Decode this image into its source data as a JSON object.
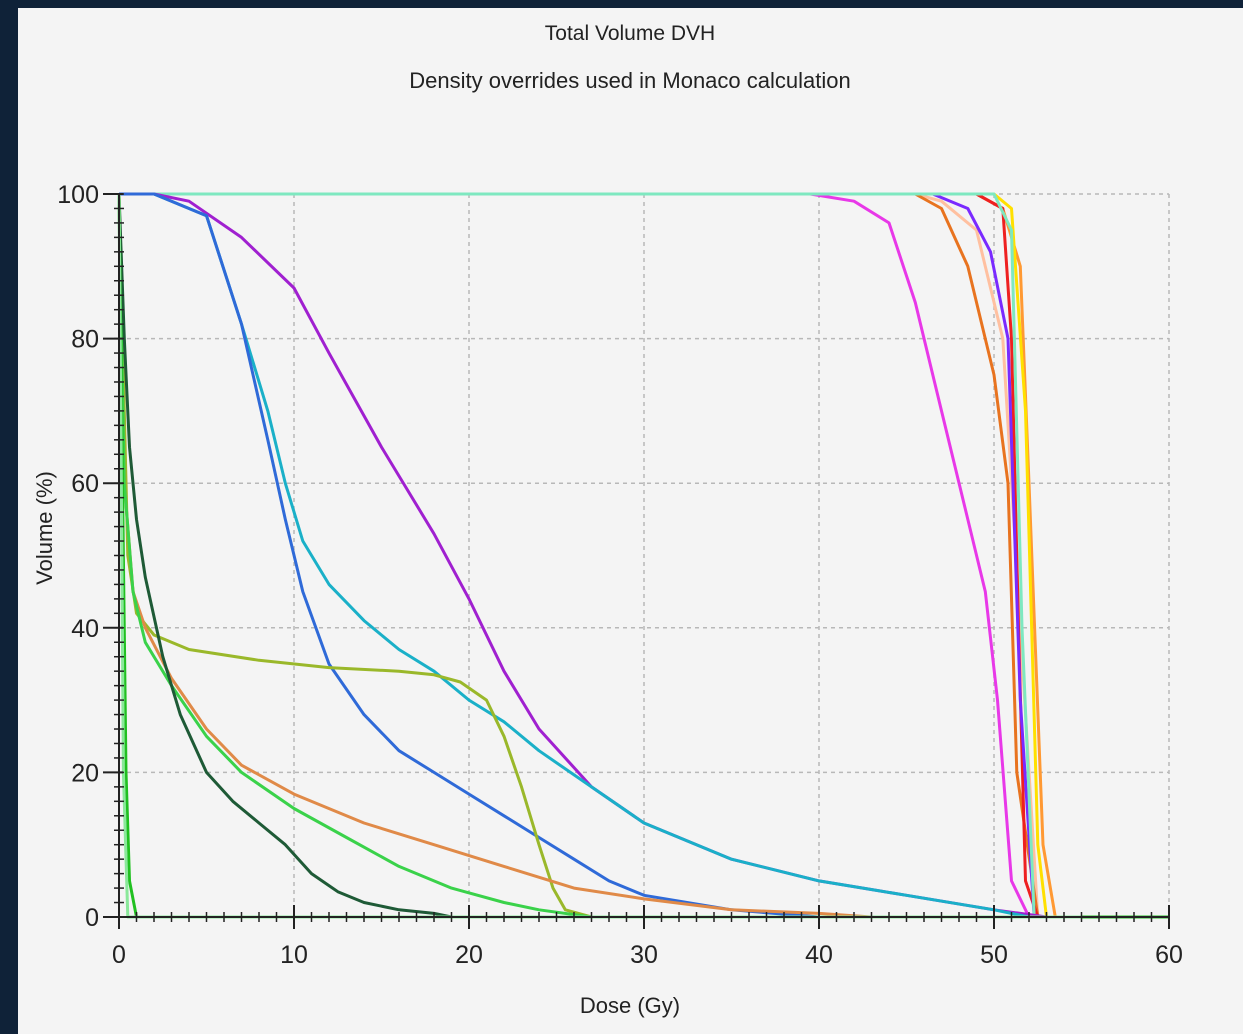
{
  "chart_data": {
    "type": "line",
    "title": "Total Volume DVH",
    "subtitle": "Density overrides used in Monaco calculation",
    "xlabel": "Dose (Gy)",
    "ylabel": "Volume (%)",
    "xlim": [
      0,
      60
    ],
    "ylim": [
      0,
      100
    ],
    "xticks": [
      "0",
      "10",
      "20",
      "30",
      "40",
      "50",
      "60"
    ],
    "yticks": [
      "0",
      "20",
      "40",
      "60",
      "80",
      "100"
    ],
    "grid": true,
    "legend": "none",
    "series": [
      {
        "color": "#ffc0a0",
        "x": [
          0,
          45.5,
          47,
          49,
          50.5,
          51.5,
          52.5
        ],
        "y": [
          100,
          100,
          99,
          95,
          80,
          40,
          0
        ]
      },
      {
        "color": "#ff9933",
        "x": [
          0,
          49,
          50.5,
          51.5,
          52,
          52.8,
          53.5
        ],
        "y": [
          100,
          100,
          98,
          90,
          60,
          10,
          0
        ]
      },
      {
        "color": "#e8731f",
        "x": [
          0,
          45.5,
          47,
          48.5,
          50,
          50.8,
          51.3,
          52.5
        ],
        "y": [
          100,
          100,
          98,
          90,
          75,
          60,
          20,
          0
        ]
      },
      {
        "color": "#ee2020",
        "x": [
          0,
          49,
          50.5,
          51,
          51.4,
          51.8,
          52.5
        ],
        "y": [
          100,
          100,
          98,
          80,
          40,
          5,
          0
        ]
      },
      {
        "color": "#7a2aff",
        "x": [
          0,
          46.5,
          48.5,
          49.8,
          50.8,
          51.5,
          52.3
        ],
        "y": [
          100,
          100,
          98,
          92,
          80,
          30,
          0
        ]
      },
      {
        "color": "#e838e8",
        "x": [
          0,
          39.5,
          42,
          44,
          45.5,
          47,
          48.5,
          49.5,
          50.2,
          51,
          52
        ],
        "y": [
          100,
          100,
          99,
          96,
          85,
          70,
          55,
          45,
          30,
          5,
          0
        ]
      },
      {
        "color": "#ffe000",
        "x": [
          0,
          50,
          51,
          51.8,
          52.5,
          53
        ],
        "y": [
          100,
          100,
          98,
          70,
          10,
          0
        ]
      },
      {
        "color": "#7ee8c0",
        "x": [
          0,
          50,
          51,
          51.6,
          52.3
        ],
        "y": [
          100,
          100,
          95,
          40,
          0
        ]
      },
      {
        "color": "#a020d0",
        "x": [
          0,
          2,
          4,
          7,
          10,
          12,
          15,
          18,
          20,
          22,
          24,
          27,
          30,
          35,
          40,
          45,
          50,
          53
        ],
        "y": [
          100,
          100,
          99,
          94,
          87,
          78,
          65,
          53,
          44,
          34,
          26,
          18,
          13,
          8,
          5,
          3,
          1,
          0
        ]
      },
      {
        "color": "#1ab0c8",
        "x": [
          0,
          2,
          5,
          7,
          8.5,
          9.5,
          10.5,
          12,
          14,
          16,
          18,
          20,
          22,
          24,
          27,
          30,
          35,
          40,
          45,
          50,
          52
        ],
        "y": [
          100,
          100,
          97,
          82,
          70,
          60,
          52,
          46,
          41,
          37,
          34,
          30,
          27,
          23,
          18,
          13,
          8,
          5,
          3,
          1,
          0
        ]
      },
      {
        "color": "#2f6ad8",
        "x": [
          0,
          2,
          5,
          7,
          8.5,
          9.5,
          10.5,
          12,
          14,
          16,
          18,
          20,
          22,
          24,
          26,
          28,
          30,
          35,
          40
        ],
        "y": [
          100,
          100,
          97,
          82,
          66,
          55,
          45,
          35,
          28,
          23,
          20,
          17,
          14,
          11,
          8,
          5,
          3,
          1,
          0
        ]
      },
      {
        "color": "#9ab82a",
        "x": [
          0,
          0.2,
          0.5,
          1,
          2,
          4,
          8,
          12,
          16,
          18,
          19.5,
          21,
          22,
          23,
          24,
          24.8,
          25.5,
          27
        ],
        "y": [
          100,
          80,
          50,
          42,
          39,
          37,
          35.5,
          34.5,
          34,
          33.5,
          32.5,
          30,
          25,
          18,
          10,
          4,
          1,
          0
        ]
      },
      {
        "color": "#e08a48",
        "x": [
          0,
          0.3,
          0.8,
          1.5,
          3,
          5,
          7,
          10,
          14,
          18,
          22,
          26,
          30,
          35,
          40,
          43
        ],
        "y": [
          100,
          60,
          45,
          40,
          33,
          26,
          21,
          17,
          13,
          10,
          7,
          4,
          2.5,
          1,
          0.5,
          0
        ]
      },
      {
        "color": "#3ad24a",
        "x": [
          0,
          0.3,
          0.8,
          1.5,
          3,
          5,
          7,
          10,
          13,
          16,
          19,
          22,
          24,
          27
        ],
        "y": [
          100,
          60,
          45,
          38,
          32,
          25,
          20,
          15,
          11,
          7,
          4,
          2,
          1,
          0
        ]
      },
      {
        "color": "#1e5a36",
        "x": [
          0,
          0.3,
          0.6,
          1,
          1.5,
          2.5,
          3.5,
          5,
          6.5,
          8,
          9.5,
          11,
          12.5,
          14,
          16,
          18,
          19
        ],
        "y": [
          100,
          80,
          65,
          55,
          47,
          36,
          28,
          20,
          16,
          13,
          10,
          6,
          3.5,
          2,
          1,
          0.5,
          0
        ]
      },
      {
        "color": "#20c020",
        "x": [
          0,
          0.2,
          0.4,
          0.6,
          1,
          60
        ],
        "y": [
          100,
          60,
          20,
          5,
          0,
          0
        ]
      },
      {
        "color": "#8ae89a",
        "x": [
          0,
          0.1,
          0.25,
          0.5,
          55
        ],
        "y": [
          100,
          70,
          20,
          0,
          0
        ]
      }
    ]
  }
}
